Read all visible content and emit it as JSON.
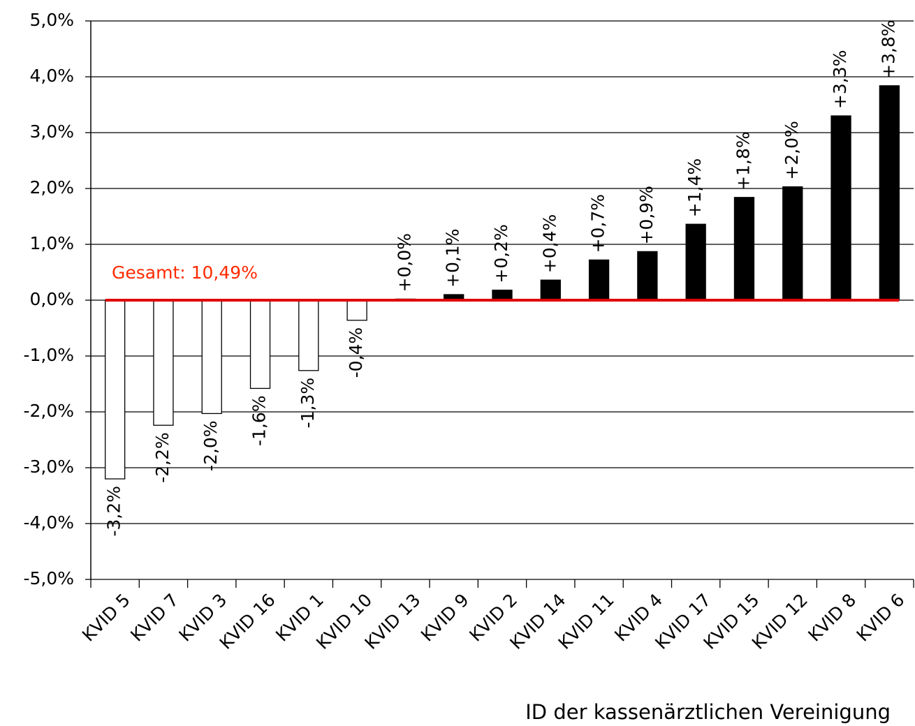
{
  "chart_data": {
    "type": "bar",
    "x_label": "ID der kassenärztlichen Vereinigung",
    "annotation": "Gesamt: 10,49%",
    "annotation_color": "#ff2a00",
    "baseline_color": "#e00000",
    "categories": [
      "KVID 5",
      "KVID 7",
      "KVID 3",
      "KVID 16",
      "KVID 1",
      "KVID 10",
      "KVID 13",
      "KVID 9",
      "KVID 2",
      "KVID 14",
      "KVID 11",
      "KVID 4",
      "KVID 17",
      "KVID 15",
      "KVID 12",
      "KVID 8",
      "KVID 6"
    ],
    "values": [
      -3.2,
      -2.24,
      -2.03,
      -1.58,
      -1.26,
      -0.36,
      0.02,
      0.1,
      0.18,
      0.36,
      0.72,
      0.87,
      1.36,
      1.84,
      2.03,
      3.3,
      3.84
    ],
    "value_labels": [
      "-3,2%",
      "-2,2%",
      "-2,0%",
      "-1,6%",
      "-1,3%",
      "-0,4%",
      "+0,0%",
      "+0,1%",
      "+0,2%",
      "+0,4%",
      "+0,7%",
      "+0,9%",
      "+1,4%",
      "+1,8%",
      "+2,0%",
      "+3,3%",
      "+3,8%"
    ],
    "colors": [
      "#ffffff",
      "#ffffff",
      "#ffffff",
      "#ffffff",
      "#ffffff",
      "#ffffff",
      "#000000",
      "#000000",
      "#000000",
      "#000000",
      "#000000",
      "#000000",
      "#000000",
      "#000000",
      "#000000",
      "#000000",
      "#000000"
    ],
    "ylim": [
      -5,
      5
    ],
    "yticks": [
      {
        "value": -5,
        "label": "-5,0%"
      },
      {
        "value": -4,
        "label": "-4,0%"
      },
      {
        "value": -3,
        "label": "-3,0%"
      },
      {
        "value": -2,
        "label": "-2,0%"
      },
      {
        "value": -1,
        "label": "-1,0%"
      },
      {
        "value": 0,
        "label": "0,0%"
      },
      {
        "value": 1,
        "label": "1,0%"
      },
      {
        "value": 2,
        "label": "2,0%"
      },
      {
        "value": 3,
        "label": "3,0%"
      },
      {
        "value": 4,
        "label": "4,0%"
      },
      {
        "value": 5,
        "label": "5,0%"
      }
    ],
    "grid": true
  }
}
